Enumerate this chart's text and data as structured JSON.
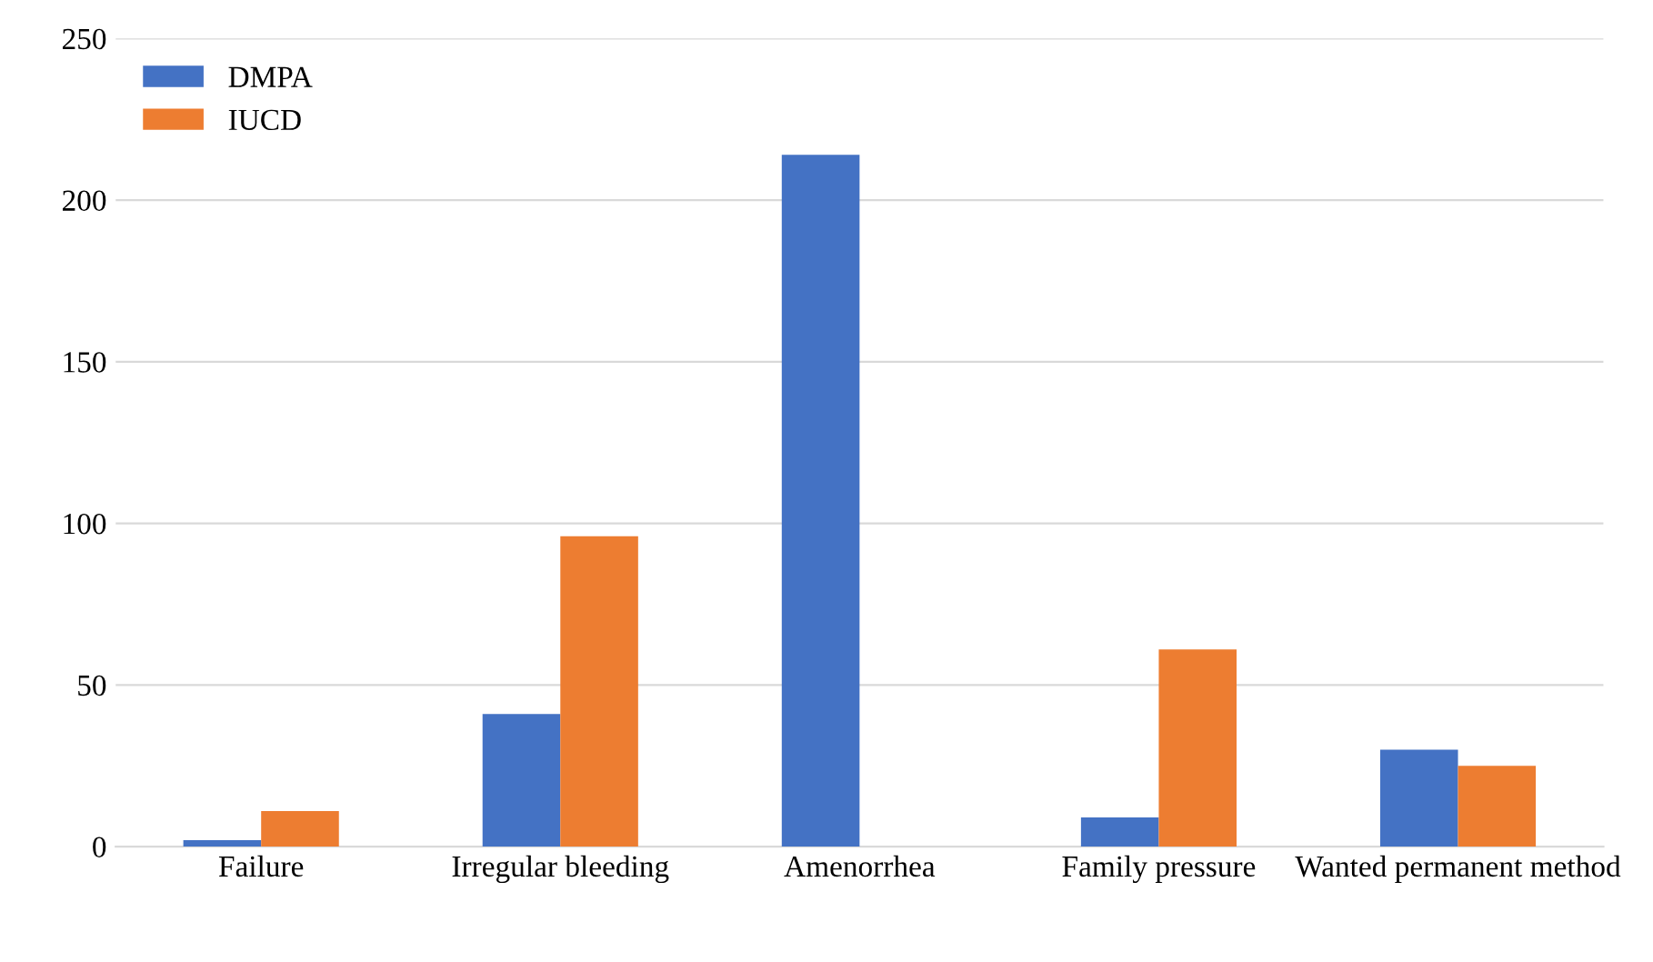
{
  "chart_data": {
    "type": "bar",
    "categories": [
      "Failure",
      "Irregular bleeding",
      "Amenorrhea",
      "Family pressure",
      "Wanted permanent method"
    ],
    "series": [
      {
        "name": "DMPA",
        "color": "#4472c4",
        "values": [
          2,
          41,
          214,
          9,
          30
        ]
      },
      {
        "name": "IUCD",
        "color": "#ed7d31",
        "values": [
          11,
          96,
          0,
          61,
          25
        ]
      }
    ],
    "ylim": [
      0,
      250
    ],
    "yticks": [
      0,
      50,
      100,
      150,
      200,
      250
    ],
    "grid": "y",
    "legend": "top left"
  }
}
